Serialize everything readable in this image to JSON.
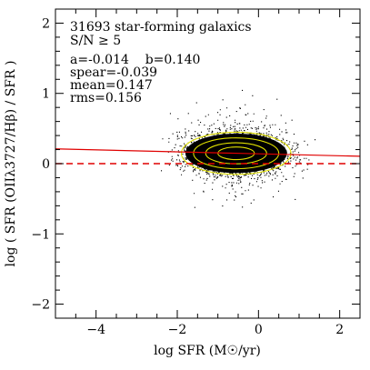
{
  "chart_data": {
    "type": "scatter",
    "title_lines": [
      "31693 star-forming galaxics",
      "S/N ≥ 5"
    ],
    "stats_lines": [
      "a=-0.014    b=0.140",
      "spear=-0.039",
      "mean=0.147",
      "rms=0.156"
    ],
    "xlabel": "log SFR (M☉/yr)",
    "ylabel": "log ( SFR (OIIλ3727/Hβ) / SFR )",
    "xlim": [
      -5,
      2.5
    ],
    "ylim": [
      -2.2,
      2.2
    ],
    "xticks": [
      -4,
      -2,
      0,
      2
    ],
    "yticks": [
      -2,
      -1,
      0,
      1,
      2
    ],
    "xtick_labels": [
      "−4",
      "−2",
      "0",
      "2"
    ],
    "ytick_labels": [
      "−2",
      "−1",
      "0",
      "1",
      "2"
    ],
    "n_points": 31693,
    "cloud": {
      "center_x": -0.55,
      "center_y": 0.147,
      "sigma_x": 0.6,
      "sigma_y": 0.156,
      "x_range": [
        -2.5,
        1.5
      ]
    },
    "fit_line": {
      "slope": -0.014,
      "intercept": 0.14,
      "color": "#e00000",
      "style": "solid"
    },
    "zero_line": {
      "y": 0,
      "color": "#e00000",
      "style": "dashed"
    },
    "contours": [
      {
        "level": 1,
        "color": "#e0e000",
        "rx": 1.35,
        "ry": 0.3
      },
      {
        "level": 2,
        "color": "#e0e000",
        "rx": 1.05,
        "ry": 0.22
      },
      {
        "level": 3,
        "color": "#e0e000",
        "rx": 0.75,
        "ry": 0.15
      },
      {
        "level": 4,
        "color": "#e0e000",
        "rx": 0.45,
        "ry": 0.09
      }
    ],
    "point_color": "#000000"
  }
}
